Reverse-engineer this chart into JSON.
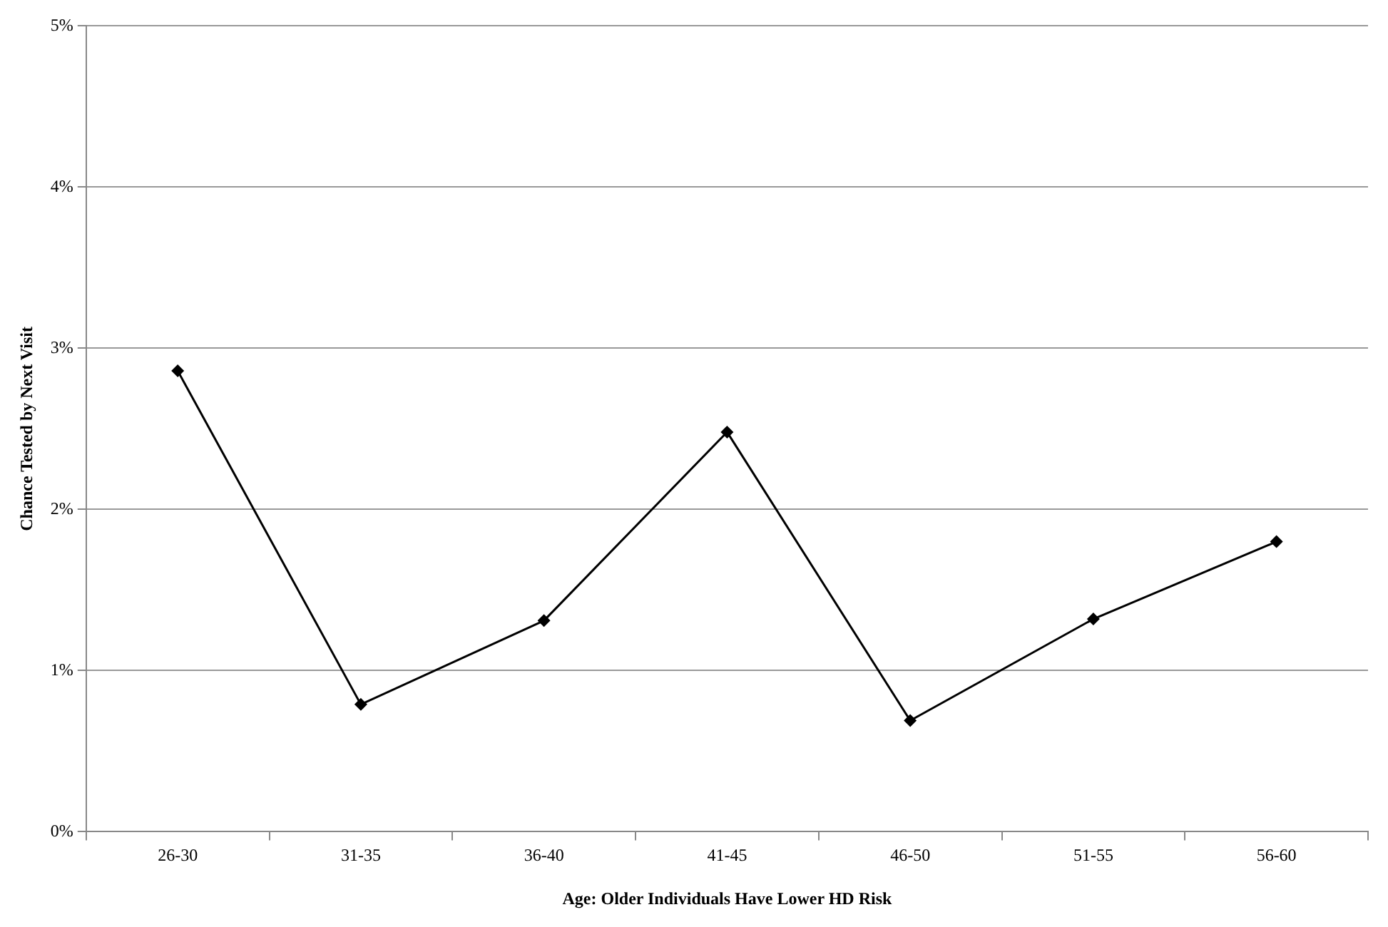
{
  "chart_data": {
    "type": "line",
    "xlabel": "Age: Older Individuals Have Lower HD Risk",
    "ylabel": "Chance Tested by Next Visit",
    "categories": [
      "26-30",
      "31-35",
      "36-40",
      "41-45",
      "46-50",
      "51-55",
      "56-60"
    ],
    "series": [
      {
        "color": "#000000",
        "values": [
          2.86,
          0.79,
          1.31,
          2.48,
          0.69,
          1.32,
          1.8
        ]
      }
    ],
    "ylim": [
      0,
      5
    ],
    "yticks": [
      {
        "value": 0,
        "label": "0%"
      },
      {
        "value": 1,
        "label": "1%"
      },
      {
        "value": 2,
        "label": "2%"
      },
      {
        "value": 3,
        "label": "3%"
      },
      {
        "value": 4,
        "label": "4%"
      },
      {
        "value": 5,
        "label": "5%"
      }
    ],
    "grid": "y",
    "legend": false,
    "marker": "diamond",
    "line_style": "solid"
  }
}
